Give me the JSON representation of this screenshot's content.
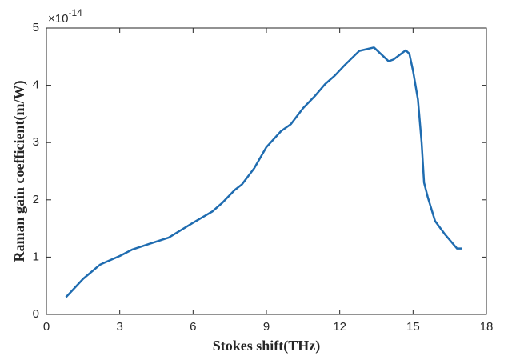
{
  "chart_data": {
    "type": "line",
    "x_label": "Stokes shift(THz)",
    "y_label": "Raman gain coefficient(m/W)",
    "y_exponent": {
      "base": "×10",
      "power": "-14"
    },
    "xlim": [
      0,
      18
    ],
    "xticks": [
      0,
      3,
      6,
      9,
      12,
      15,
      18
    ],
    "ylim": [
      0,
      5
    ],
    "yticks": [
      0,
      1,
      2,
      3,
      4,
      5
    ],
    "grid": false,
    "series": [
      {
        "color": "#1f6cb0",
        "x": [
          0.8,
          1.5,
          2.2,
          3.0,
          3.5,
          4.2,
          5.0,
          6.0,
          6.8,
          7.2,
          7.7,
          8.0,
          8.5,
          9.0,
          9.6,
          10.0,
          10.5,
          11.0,
          11.4,
          11.8,
          12.2,
          12.8,
          13.4,
          14.0,
          14.2,
          14.7,
          14.85,
          15.0,
          15.2,
          15.35,
          15.45,
          15.6,
          15.9,
          16.3,
          16.8,
          17.0
        ],
        "values": [
          0.3,
          0.62,
          0.87,
          1.02,
          1.13,
          1.23,
          1.34,
          1.6,
          1.8,
          1.95,
          2.17,
          2.27,
          2.55,
          2.92,
          3.2,
          3.32,
          3.6,
          3.82,
          4.02,
          4.17,
          4.35,
          4.6,
          4.66,
          4.42,
          4.45,
          4.61,
          4.55,
          4.25,
          3.75,
          3.0,
          2.3,
          2.05,
          1.63,
          1.4,
          1.15,
          1.15
        ]
      }
    ]
  }
}
